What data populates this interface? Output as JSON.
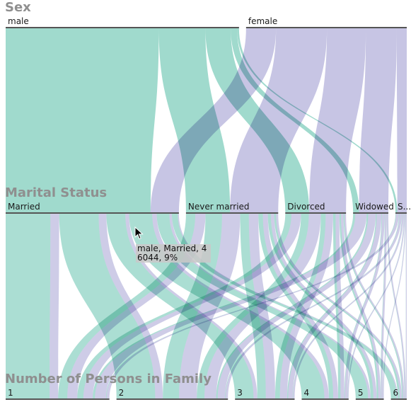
{
  "chart_data": {
    "type": "parallel-sets",
    "dimensions": [
      {
        "name": "Sex",
        "categories": [
          "male",
          "female"
        ]
      },
      {
        "name": "Marital Status",
        "categories": [
          "Married",
          "Never married",
          "Divorced",
          "Widowed",
          "S..."
        ]
      },
      {
        "name": "Number of Persons in Family",
        "categories": [
          "1",
          "2",
          "3",
          "4",
          "5",
          "6"
        ]
      }
    ],
    "flows_sex_marital": [
      [
        "male",
        "Married",
        46044
      ],
      [
        "male",
        "Never married",
        14000
      ],
      [
        "male",
        "Divorced",
        7600
      ],
      [
        "male",
        "Widowed",
        1900
      ],
      [
        "male",
        "S...",
        600
      ],
      [
        "female",
        "Married",
        9000
      ],
      [
        "female",
        "Never married",
        15300
      ],
      [
        "female",
        "Divorced",
        11700
      ],
      [
        "female",
        "Widowed",
        9300
      ],
      [
        "female",
        "S...",
        3000
      ]
    ],
    "flows_marital_family": [
      [
        "Married",
        "1",
        17000
      ],
      [
        "Married",
        "2",
        15000
      ],
      [
        "Married",
        "3",
        7200
      ],
      [
        "Married",
        "4",
        8800
      ],
      [
        "Married",
        "5",
        4800
      ],
      [
        "Married",
        "6",
        2244
      ],
      [
        "Never married",
        "1",
        6200
      ],
      [
        "Never married",
        "2",
        11000
      ],
      [
        "Never married",
        "3",
        5800
      ],
      [
        "Never married",
        "4",
        3000
      ],
      [
        "Never married",
        "5",
        2000
      ],
      [
        "Never married",
        "6",
        1300
      ],
      [
        "Divorced",
        "1",
        5000
      ],
      [
        "Divorced",
        "2",
        6300
      ],
      [
        "Divorced",
        "3",
        3900
      ],
      [
        "Divorced",
        "4",
        2000
      ],
      [
        "Divorced",
        "5",
        1300
      ],
      [
        "Divorced",
        "6",
        800
      ],
      [
        "Widowed",
        "1",
        4300
      ],
      [
        "Widowed",
        "2",
        2900
      ],
      [
        "Widowed",
        "3",
        1800
      ],
      [
        "Widowed",
        "4",
        1000
      ],
      [
        "Widowed",
        "5",
        700
      ],
      [
        "Widowed",
        "6",
        500
      ],
      [
        "S...",
        "1",
        1100
      ],
      [
        "S...",
        "2",
        900
      ],
      [
        "S...",
        "3",
        600
      ],
      [
        "S...",
        "4",
        400
      ],
      [
        "S...",
        "5",
        300
      ],
      [
        "S...",
        "6",
        300
      ]
    ],
    "colors": {
      "male": "#8fd3c4",
      "female": "#bdbbdf",
      "axis": "#555555",
      "title": "#8f8f8f"
    },
    "tooltip": {
      "line1": "male, Married, 4",
      "line2": "6044, 9%"
    }
  }
}
